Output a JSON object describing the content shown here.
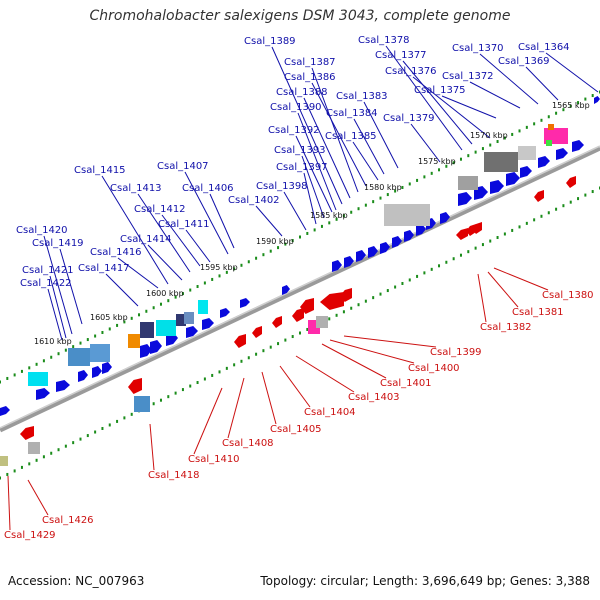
{
  "title": "Chromohalobacter salexigens DSM 3043, complete genome",
  "footer": {
    "accession": "Accession: NC_007963",
    "stats": "Topology: circular; Length: 3,696,649 bp; Genes: 3,388"
  },
  "colors": {
    "forward_gene": "#0a0adc",
    "reverse_gene": "#e00000",
    "backbone": "#808080",
    "tick": "#1a8c1a",
    "top_label": "#1111aa",
    "bottom_label": "#cc1111"
  },
  "kbp_labels": [
    "1565 kbp",
    "1570 kbp",
    "1575 kbp",
    "1580 kbp",
    "1585 kbp",
    "1590 kbp",
    "1595 kbp",
    "1600 kbp",
    "1605 kbp",
    "1610 kbp"
  ],
  "top_genes": [
    "Csal_1364",
    "Csal_1369",
    "Csal_1370",
    "Csal_1372",
    "Csal_1375",
    "Csal_1376",
    "Csal_1377",
    "Csal_1378",
    "Csal_1379",
    "Csal_1383",
    "Csal_1384",
    "Csal_1385",
    "Csal_1386",
    "Csal_1387",
    "Csal_1388",
    "Csal_1389",
    "Csal_1390",
    "Csal_1392",
    "Csal_1393",
    "Csal_1397",
    "Csal_1398",
    "Csal_1402",
    "Csal_1406",
    "Csal_1407",
    "Csal_1411",
    "Csal_1412",
    "Csal_1413",
    "Csal_1414",
    "Csal_1415",
    "Csal_1416",
    "Csal_1417",
    "Csal_1419",
    "Csal_1420",
    "Csal_1421",
    "Csal_1422"
  ],
  "bottom_genes": [
    "Csal_1380",
    "Csal_1381",
    "Csal_1382",
    "Csal_1399",
    "Csal_1400",
    "Csal_1401",
    "Csal_1403",
    "Csal_1404",
    "Csal_1405",
    "Csal_1408",
    "Csal_1410",
    "Csal_1418",
    "Csal_1426",
    "Csal_1429"
  ]
}
